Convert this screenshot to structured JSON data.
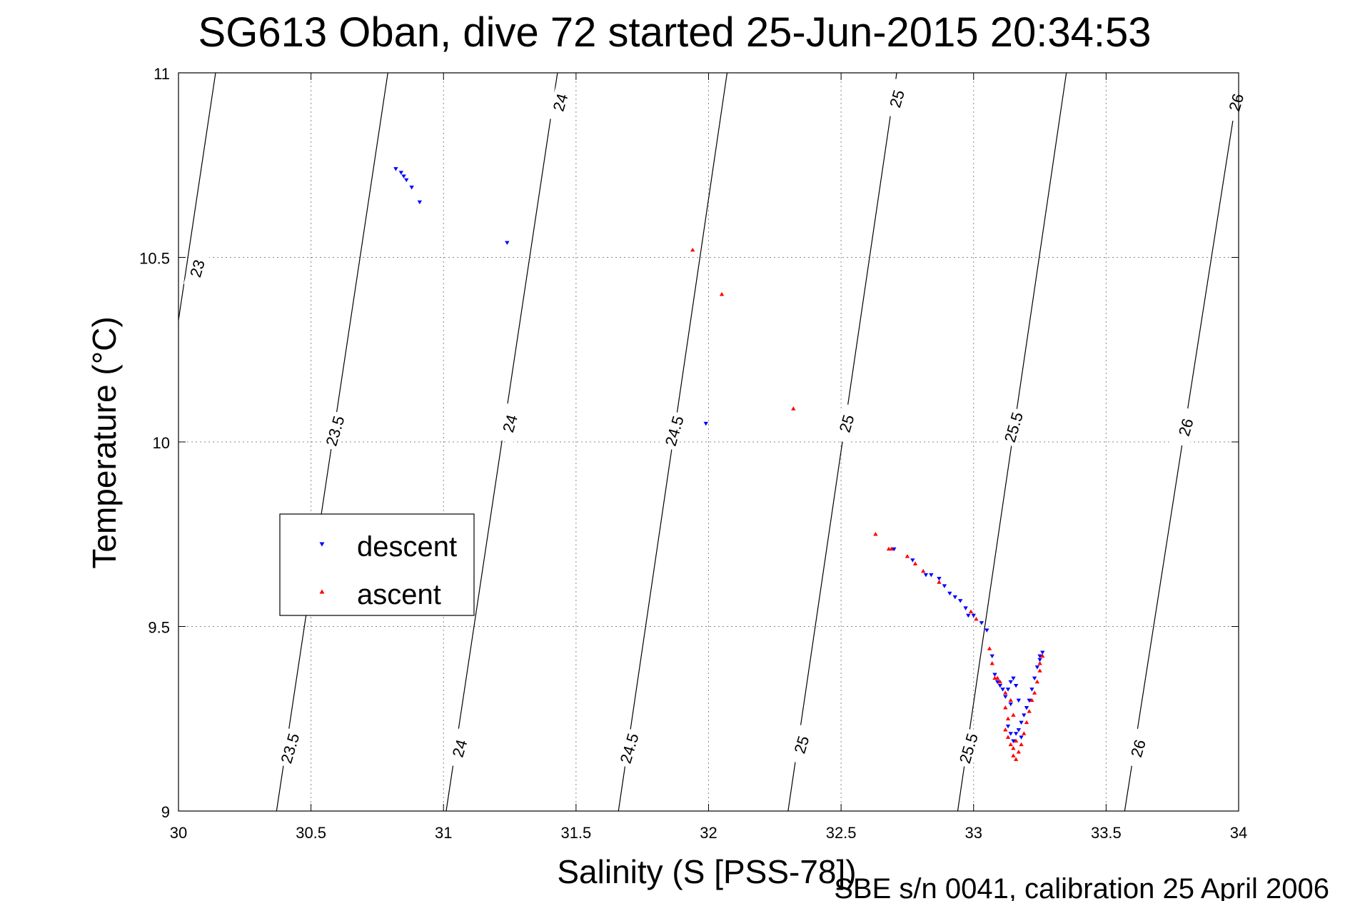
{
  "chart_data": {
    "type": "scatter",
    "title": "SG613 Oban, dive 72 started 25-Jun-2015 20:34:53",
    "xlabel": "Salinity (S [PSS-78])",
    "ylabel": "Temperature (°C)",
    "footer": "SBE s/n 0041, calibration 25 April 2006",
    "xlim": [
      30,
      34
    ],
    "ylim": [
      9,
      11
    ],
    "xticks": [
      30,
      30.5,
      31,
      31.5,
      32,
      32.5,
      33,
      33.5,
      34
    ],
    "xtick_labels": [
      "30",
      "30.5",
      "31",
      "31.5",
      "32",
      "32.5",
      "33",
      "33.5",
      "34"
    ],
    "yticks": [
      9,
      9.5,
      10,
      10.5,
      11
    ],
    "ytick_labels": [
      "9",
      "9.5",
      "10",
      "10.5",
      "11"
    ],
    "grid": true,
    "legend": {
      "placement": "center-left",
      "entries": [
        "descent",
        "ascent"
      ]
    },
    "density_contours": [
      {
        "label": "23",
        "label_text": "23",
        "points": [
          [
            30.14,
            11
          ],
          [
            30.0,
            10.33
          ]
        ]
      },
      {
        "label": "23.5",
        "label_text": "23.5",
        "points": [
          [
            30.79,
            11
          ],
          [
            30.37,
            9
          ]
        ]
      },
      {
        "label": "24",
        "label_text": "24",
        "points": [
          [
            31.43,
            11
          ],
          [
            31.01,
            9
          ]
        ]
      },
      {
        "label": "24.5",
        "label_text": "24.5",
        "points": [
          [
            32.07,
            11
          ],
          [
            31.66,
            9
          ]
        ]
      },
      {
        "label": "25",
        "label_text": "25",
        "points": [
          [
            32.71,
            11
          ],
          [
            32.3,
            9
          ]
        ]
      },
      {
        "label": "25.5",
        "label_text": "25.5",
        "points": [
          [
            33.35,
            11
          ],
          [
            32.94,
            9
          ]
        ]
      },
      {
        "label": "26",
        "label_text": "26",
        "points": [
          [
            34.0,
            10.97
          ],
          [
            33.57,
            9
          ]
        ]
      }
    ],
    "contour_labels": [
      {
        "text": "23",
        "x": 30.07,
        "y": 10.47
      },
      {
        "text": "23.5",
        "x": 30.59,
        "y": 10.03
      },
      {
        "text": "23.5",
        "x": 30.42,
        "y": 9.17
      },
      {
        "text": "24",
        "x": 31.44,
        "y": 10.92
      },
      {
        "text": "24",
        "x": 31.25,
        "y": 10.05
      },
      {
        "text": "24",
        "x": 31.06,
        "y": 9.17
      },
      {
        "text": "24.5",
        "x": 31.87,
        "y": 10.03
      },
      {
        "text": "24.5",
        "x": 31.7,
        "y": 9.17
      },
      {
        "text": "25",
        "x": 32.71,
        "y": 10.93
      },
      {
        "text": "25",
        "x": 32.52,
        "y": 10.05
      },
      {
        "text": "25",
        "x": 32.35,
        "y": 9.18
      },
      {
        "text": "25.5",
        "x": 33.15,
        "y": 10.04
      },
      {
        "text": "25.5",
        "x": 32.98,
        "y": 9.17
      },
      {
        "text": "26",
        "x": 33.99,
        "y": 10.92
      },
      {
        "text": "26",
        "x": 33.8,
        "y": 10.04
      },
      {
        "text": "26",
        "x": 33.62,
        "y": 9.17
      }
    ],
    "series": [
      {
        "name": "descent",
        "color": "#0000ff",
        "marker": "triangle-down",
        "points": [
          [
            30.82,
            10.74
          ],
          [
            30.84,
            10.73
          ],
          [
            30.85,
            10.72
          ],
          [
            30.86,
            10.71
          ],
          [
            30.88,
            10.69
          ],
          [
            30.91,
            10.65
          ],
          [
            31.24,
            10.54
          ],
          [
            31.99,
            10.05
          ],
          [
            32.7,
            9.71
          ],
          [
            32.77,
            9.68
          ],
          [
            32.82,
            9.64
          ],
          [
            32.84,
            9.64
          ],
          [
            32.87,
            9.63
          ],
          [
            32.89,
            9.61
          ],
          [
            32.91,
            9.59
          ],
          [
            32.93,
            9.58
          ],
          [
            32.95,
            9.57
          ],
          [
            32.97,
            9.55
          ],
          [
            32.98,
            9.53
          ],
          [
            33.0,
            9.53
          ],
          [
            33.03,
            9.51
          ],
          [
            33.05,
            9.49
          ],
          [
            33.07,
            9.42
          ],
          [
            33.08,
            9.37
          ],
          [
            33.09,
            9.35
          ],
          [
            33.1,
            9.34
          ],
          [
            33.11,
            9.33
          ],
          [
            33.12,
            9.31
          ],
          [
            33.13,
            9.33
          ],
          [
            33.14,
            9.35
          ],
          [
            33.15,
            9.36
          ],
          [
            33.14,
            9.29
          ],
          [
            33.13,
            9.23
          ],
          [
            33.14,
            9.21
          ],
          [
            33.15,
            9.19
          ],
          [
            33.16,
            9.21
          ],
          [
            33.17,
            9.22
          ],
          [
            33.18,
            9.24
          ],
          [
            33.19,
            9.26
          ],
          [
            33.2,
            9.28
          ],
          [
            33.21,
            9.3
          ],
          [
            33.22,
            9.33
          ],
          [
            33.23,
            9.36
          ],
          [
            33.24,
            9.39
          ],
          [
            33.25,
            9.41
          ],
          [
            33.25,
            9.42
          ],
          [
            33.26,
            9.43
          ],
          [
            33.16,
            9.34
          ],
          [
            33.17,
            9.3
          ],
          [
            33.18,
            9.2
          ]
        ]
      },
      {
        "name": "ascent",
        "color": "#ff0000",
        "marker": "triangle-up",
        "points": [
          [
            31.94,
            10.52
          ],
          [
            32.05,
            10.4
          ],
          [
            32.32,
            10.09
          ],
          [
            32.63,
            9.75
          ],
          [
            32.68,
            9.71
          ],
          [
            32.69,
            9.71
          ],
          [
            32.75,
            9.69
          ],
          [
            32.78,
            9.67
          ],
          [
            32.81,
            9.65
          ],
          [
            32.87,
            9.62
          ],
          [
            32.99,
            9.54
          ],
          [
            33.01,
            9.52
          ],
          [
            33.06,
            9.44
          ],
          [
            33.07,
            9.4
          ],
          [
            33.08,
            9.36
          ],
          [
            33.09,
            9.36
          ],
          [
            33.1,
            9.35
          ],
          [
            33.12,
            9.32
          ],
          [
            33.12,
            9.28
          ],
          [
            33.13,
            9.25
          ],
          [
            33.12,
            9.22
          ],
          [
            33.13,
            9.2
          ],
          [
            33.14,
            9.18
          ],
          [
            33.15,
            9.17
          ],
          [
            33.15,
            9.15
          ],
          [
            33.16,
            9.14
          ],
          [
            33.17,
            9.16
          ],
          [
            33.18,
            9.18
          ],
          [
            33.19,
            9.21
          ],
          [
            33.2,
            9.24
          ],
          [
            33.21,
            9.27
          ],
          [
            33.22,
            9.3
          ],
          [
            33.23,
            9.32
          ],
          [
            33.24,
            9.35
          ],
          [
            33.25,
            9.38
          ],
          [
            33.25,
            9.4
          ],
          [
            33.26,
            9.42
          ],
          [
            33.14,
            9.3
          ],
          [
            33.15,
            9.26
          ],
          [
            33.16,
            9.19
          ]
        ]
      }
    ]
  }
}
